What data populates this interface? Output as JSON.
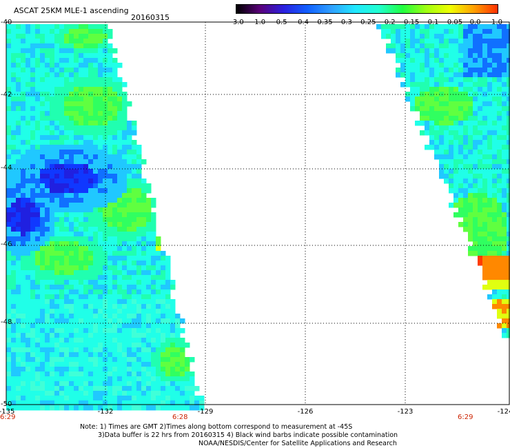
{
  "header": {
    "title": "ASCAT 25KM MLE-1 ascending",
    "date": "20160315"
  },
  "colorbar": {
    "labels": [
      "-3.0",
      "-1.0",
      "-0.5",
      "-0.4",
      "-0.35",
      "-0.3",
      "-0.25",
      "-0.2",
      "-0.15",
      "-0.1",
      "-0.05",
      "0.0",
      "1.0"
    ],
    "colors": [
      "#000000",
      "#5a007a",
      "#2a20e0",
      "#1060ff",
      "#2fa0ff",
      "#20e8ff",
      "#20ffd0",
      "#20ff40",
      "#a0ff10",
      "#f0ff00",
      "#ffa000",
      "#ff3000"
    ]
  },
  "axes": {
    "x_ticks": [
      "-135",
      "-132",
      "-129",
      "-126",
      "-123",
      "-124"
    ],
    "y_ticks": [
      "-40",
      "-42",
      "-44",
      "-46",
      "-48",
      "-50"
    ],
    "x_range": [
      -135,
      -123.6
    ],
    "y_range": [
      -50,
      -40
    ],
    "grid": "dotted"
  },
  "times": {
    "left": "6:29",
    "middle": "6:28",
    "right": "6:29",
    "color": "#cc2200"
  },
  "notes": {
    "line1": "Note: 1) Times are GMT 2)Times along bottom correspond to measurement at -45S",
    "line2": "3)Data buffer is 22 hrs from 20160315 4) Black wind barbs indicate possible contamination",
    "line3": "NOAA/NESDIS/Center for Satellite Applications and Research"
  }
}
